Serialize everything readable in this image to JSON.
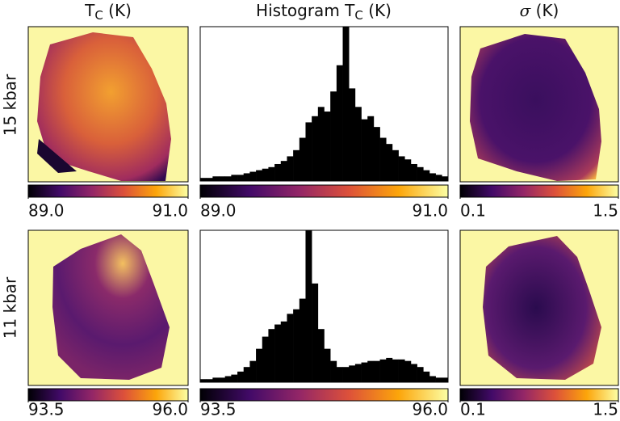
{
  "column_titles": [
    {
      "text": "T",
      "sub": "C",
      "after": " (K)"
    },
    {
      "text": "Histogram T",
      "sub": "C",
      "after": " (K)"
    },
    {
      "text": "σ",
      "after": " (K)"
    }
  ],
  "row_labels": [
    "15 kbar",
    "11 kbar"
  ],
  "chart_data": [
    {
      "type": "colorbar",
      "colormap": "inferno",
      "xlim": [
        89,
        91
      ],
      "xticks": [
        {
          "value": 89,
          "label": "89.0"
        },
        {
          "value": 91,
          "label": "91.0"
        }
      ]
    },
    {
      "type": "histogram",
      "color": "#000000",
      "xlim": [
        89,
        91
      ],
      "ylim": [
        0,
        100
      ],
      "bins": [
        89,
        89.05,
        89.1,
        89.15,
        89.2,
        89.25,
        89.3,
        89.35,
        89.4,
        89.45,
        89.5,
        89.55,
        89.6,
        89.65,
        89.7,
        89.75,
        89.8,
        89.85,
        89.9,
        89.95,
        90,
        90.05,
        90.1,
        90.15,
        90.2,
        90.25,
        90.3,
        90.35,
        90.4,
        90.45,
        90.5,
        90.55,
        90.6,
        90.65,
        90.7,
        90.75,
        90.8,
        90.85,
        90.9,
        90.95,
        91
      ],
      "counts": [
        2,
        2,
        3,
        3,
        3,
        4,
        4,
        5,
        6,
        7,
        8,
        9,
        11,
        13,
        16,
        20,
        28,
        38,
        42,
        48,
        45,
        58,
        75,
        100,
        60,
        48,
        40,
        42,
        35,
        28,
        24,
        20,
        16,
        14,
        11,
        9,
        7,
        5,
        4,
        3
      ]
    },
    {
      "type": "colorbar",
      "colormap": "inferno",
      "xlim": [
        89,
        91
      ],
      "xticks": [
        {
          "value": 89,
          "label": "89.0"
        },
        {
          "value": 91,
          "label": "91.0"
        }
      ]
    },
    {
      "type": "colorbar",
      "colormap": "inferno",
      "xlim": [
        0.1,
        1.5
      ],
      "xticks": [
        0.1,
        1.5
      ]
    },
    {
      "type": "colorbar",
      "colormap": "inferno",
      "xlim": [
        93.5,
        96
      ],
      "xticks": [
        93.5,
        {
          "value": 96,
          "label": "96.0"
        }
      ]
    },
    {
      "type": "histogram",
      "color": "#000000",
      "xlim": [
        93.5,
        96
      ],
      "ylim": [
        0,
        100
      ],
      "bins": [
        93.5,
        93.5625,
        93.625,
        93.6875,
        93.75,
        93.8125,
        93.875,
        93.9375,
        94,
        94.0625,
        94.125,
        94.1875,
        94.25,
        94.3125,
        94.375,
        94.4375,
        94.5,
        94.5625,
        94.625,
        94.6875,
        94.75,
        94.8125,
        94.875,
        94.9375,
        95,
        95.0625,
        95.125,
        95.1875,
        95.25,
        95.3125,
        95.375,
        95.4375,
        95.5,
        95.5625,
        95.625,
        95.6875,
        95.75,
        95.8125,
        95.875,
        95.9375,
        96
      ],
      "counts": [
        2,
        2,
        3,
        3,
        4,
        5,
        7,
        10,
        14,
        22,
        30,
        35,
        38,
        40,
        45,
        48,
        55,
        100,
        65,
        35,
        22,
        14,
        10,
        10,
        11,
        12,
        13,
        14,
        14,
        15,
        16,
        15,
        15,
        14,
        12,
        10,
        7,
        4,
        3,
        3
      ]
    },
    {
      "type": "colorbar",
      "colormap": "inferno",
      "xlim": [
        93.5,
        96
      ],
      "xticks": [
        93.5,
        {
          "value": 96,
          "label": "96.0"
        }
      ]
    },
    {
      "type": "colorbar",
      "colormap": "inferno",
      "xlim": [
        0.1,
        1.5
      ],
      "xticks": [
        0.1,
        1.5
      ]
    }
  ]
}
